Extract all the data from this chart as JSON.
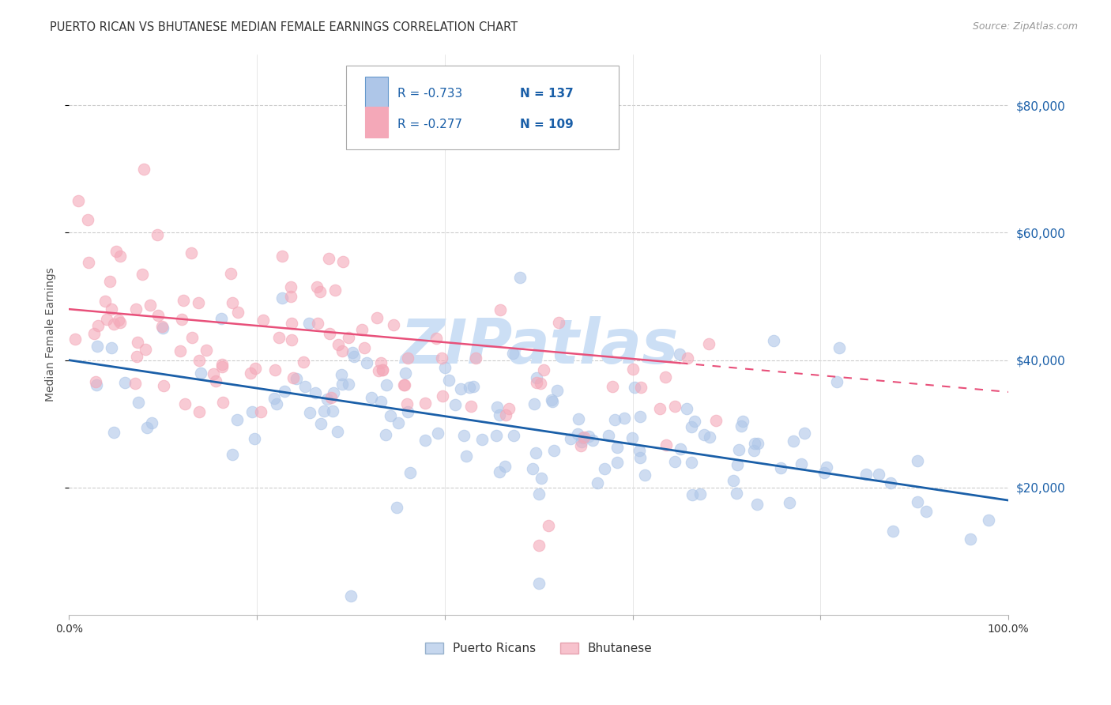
{
  "title": "PUERTO RICAN VS BHUTANESE MEDIAN FEMALE EARNINGS CORRELATION CHART",
  "source": "Source: ZipAtlas.com",
  "ylabel": "Median Female Earnings",
  "ytick_labels": [
    "$20,000",
    "$40,000",
    "$60,000",
    "$80,000"
  ],
  "ytick_values": [
    20000,
    40000,
    60000,
    80000
  ],
  "ymin": 0,
  "ymax": 88000,
  "xmin": 0.0,
  "xmax": 1.0,
  "watermark": "ZIPatlas",
  "legend_blue_r": "-0.733",
  "legend_blue_n": "137",
  "legend_pink_r": "-0.277",
  "legend_pink_n": "109",
  "blue_color": "#aec6e8",
  "pink_color": "#f4a8b8",
  "trendline_blue": "#1a5fa8",
  "trendline_pink": "#e8507a",
  "blue_label": "Puerto Ricans",
  "pink_label": "Bhutanese",
  "grid_color": "#cccccc",
  "background_color": "#ffffff",
  "watermark_color": "#ccdff5",
  "title_fontsize": 10.5,
  "axis_label_fontsize": 10,
  "tick_fontsize": 10,
  "legend_fontsize": 11,
  "source_fontsize": 9,
  "legend_text_color": "#1a5fa8",
  "legend_r_color": "#1a5fa8",
  "legend_n_color": "#1a5fa8"
}
